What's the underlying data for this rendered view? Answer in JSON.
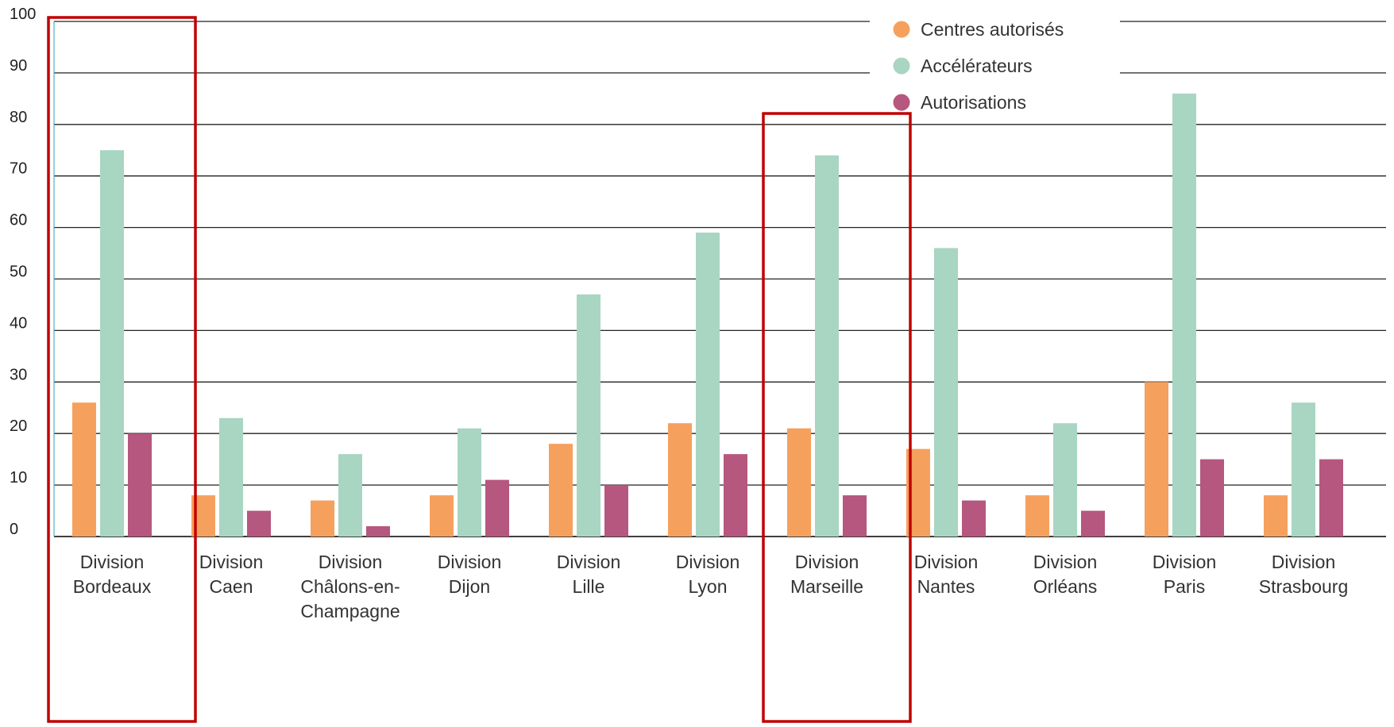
{
  "chart_data": {
    "type": "bar",
    "categories": [
      [
        "Division",
        "Bordeaux"
      ],
      [
        "Division",
        "Caen"
      ],
      [
        "Division",
        "Châlons-en-",
        "Champagne"
      ],
      [
        "Division",
        "Dijon"
      ],
      [
        "Division",
        "Lille"
      ],
      [
        "Division",
        "Lyon"
      ],
      [
        "Division",
        "Marseille"
      ],
      [
        "Division",
        "Nantes"
      ],
      [
        "Division",
        "Orléans"
      ],
      [
        "Division",
        "Paris"
      ],
      [
        "Division",
        "Strasbourg"
      ]
    ],
    "series": [
      {
        "name": "Centres autorisés",
        "color": "#F6A05E",
        "values": [
          26,
          8,
          7,
          8,
          18,
          22,
          21,
          17,
          8,
          30,
          8
        ]
      },
      {
        "name": "Accélérateurs",
        "color": "#A9D5C3",
        "values": [
          75,
          23,
          16,
          21,
          47,
          59,
          74,
          56,
          22,
          86,
          26
        ]
      },
      {
        "name": "Autorisations",
        "color": "#B5577E",
        "values": [
          20,
          5,
          2,
          11,
          10,
          16,
          8,
          7,
          5,
          15,
          15
        ]
      }
    ],
    "yticks": [
      "0",
      "10",
      "20",
      "30",
      "40",
      "50",
      "60",
      "70",
      "80",
      "90",
      "100"
    ],
    "ylim": [
      0,
      100
    ],
    "grid": true,
    "legend": "top-right",
    "highlighted_categories": [
      0,
      6
    ],
    "highlight_color": "#C00000"
  }
}
